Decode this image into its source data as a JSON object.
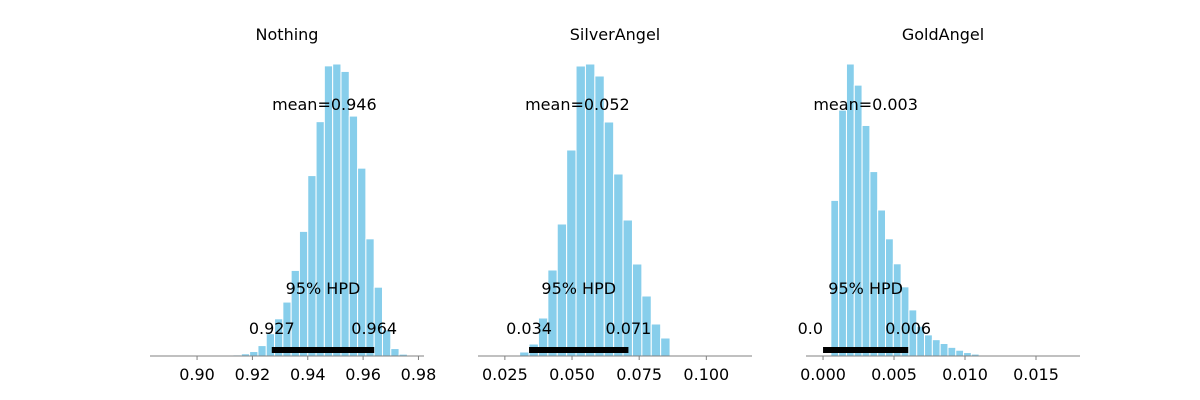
{
  "bar_color": "#87CEEB",
  "bar_edge_color": "#ffffff",
  "hpd_color": "#000000",
  "axis_color": "#808080",
  "chart_data": [
    {
      "type": "bar",
      "title": "Nothing",
      "xlim": [
        0.883,
        0.982
      ],
      "ticks": [
        0.9,
        0.92,
        0.94,
        0.96,
        0.98
      ],
      "tick_labels": [
        "0.90",
        "0.92",
        "0.94",
        "0.96",
        "0.98"
      ],
      "bin_width": 0.003,
      "bin_starts": [
        0.91,
        0.913,
        0.916,
        0.919,
        0.922,
        0.925,
        0.928,
        0.931,
        0.934,
        0.937,
        0.94,
        0.943,
        0.946,
        0.949,
        0.952,
        0.955,
        0.958,
        0.961,
        0.964,
        0.967,
        0.97,
        0.973
      ],
      "density": [
        1,
        3,
        6,
        12,
        28,
        60,
        100,
        145,
        230,
        335,
        485,
        630,
        780,
        785,
        765,
        645,
        505,
        315,
        185,
        70,
        20,
        5
      ],
      "mean": 0.946,
      "mean_label": "mean=0.946",
      "hpd_label": "95% HPD",
      "hpd": [
        0.927,
        0.964
      ],
      "hpd_low_label": "0.927",
      "hpd_high_label": "0.964"
    },
    {
      "type": "bar",
      "title": "SilverAngel",
      "xlim": [
        0.015,
        0.117
      ],
      "ticks": [
        0.025,
        0.05,
        0.075,
        0.1
      ],
      "tick_labels": [
        "0.025",
        "0.050",
        "0.075",
        "0.100"
      ],
      "bin_width": 0.0035,
      "bin_starts": [
        0.0305,
        0.034,
        0.0375,
        0.041,
        0.0445,
        0.048,
        0.0515,
        0.055,
        0.0585,
        0.062,
        0.0655,
        0.069,
        0.0725,
        0.076,
        0.0795,
        0.083
      ],
      "density": [
        10,
        30,
        95,
        215,
        330,
        515,
        725,
        730,
        700,
        585,
        455,
        340,
        230,
        150,
        80,
        45
      ],
      "mean": 0.052,
      "mean_label": "mean=0.052",
      "hpd_label": "95% HPD",
      "hpd": [
        0.034,
        0.071
      ],
      "hpd_low_label": "0.034",
      "hpd_high_label": "0.071"
    },
    {
      "type": "bar",
      "title": "GoldAngel",
      "xlim": [
        -0.0012,
        0.0181
      ],
      "ticks": [
        0.0,
        0.005,
        0.01,
        0.015
      ],
      "tick_labels": [
        "0.000",
        "0.005",
        "0.010",
        "0.015"
      ],
      "bin_width": 0.00055,
      "bin_starts": [
        0.0,
        0.00055,
        0.0011,
        0.00165,
        0.0022,
        0.00275,
        0.0033,
        0.00385,
        0.0044,
        0.00495,
        0.0055,
        0.00605,
        0.0066,
        0.00715,
        0.0077,
        0.00825,
        0.0088,
        0.00935,
        0.0099,
        0.01045,
        0.011
      ],
      "density": [
        3,
        810,
        1280,
        1520,
        1410,
        1200,
        960,
        760,
        610,
        480,
        360,
        240,
        155,
        110,
        85,
        65,
        45,
        30,
        18,
        10,
        4
      ],
      "mean": 0.003,
      "mean_label": "mean=0.003",
      "hpd_label": "95% HPD",
      "hpd": [
        0.0,
        0.006
      ],
      "hpd_low_label": "0.0",
      "hpd_high_label": "0.006"
    }
  ]
}
